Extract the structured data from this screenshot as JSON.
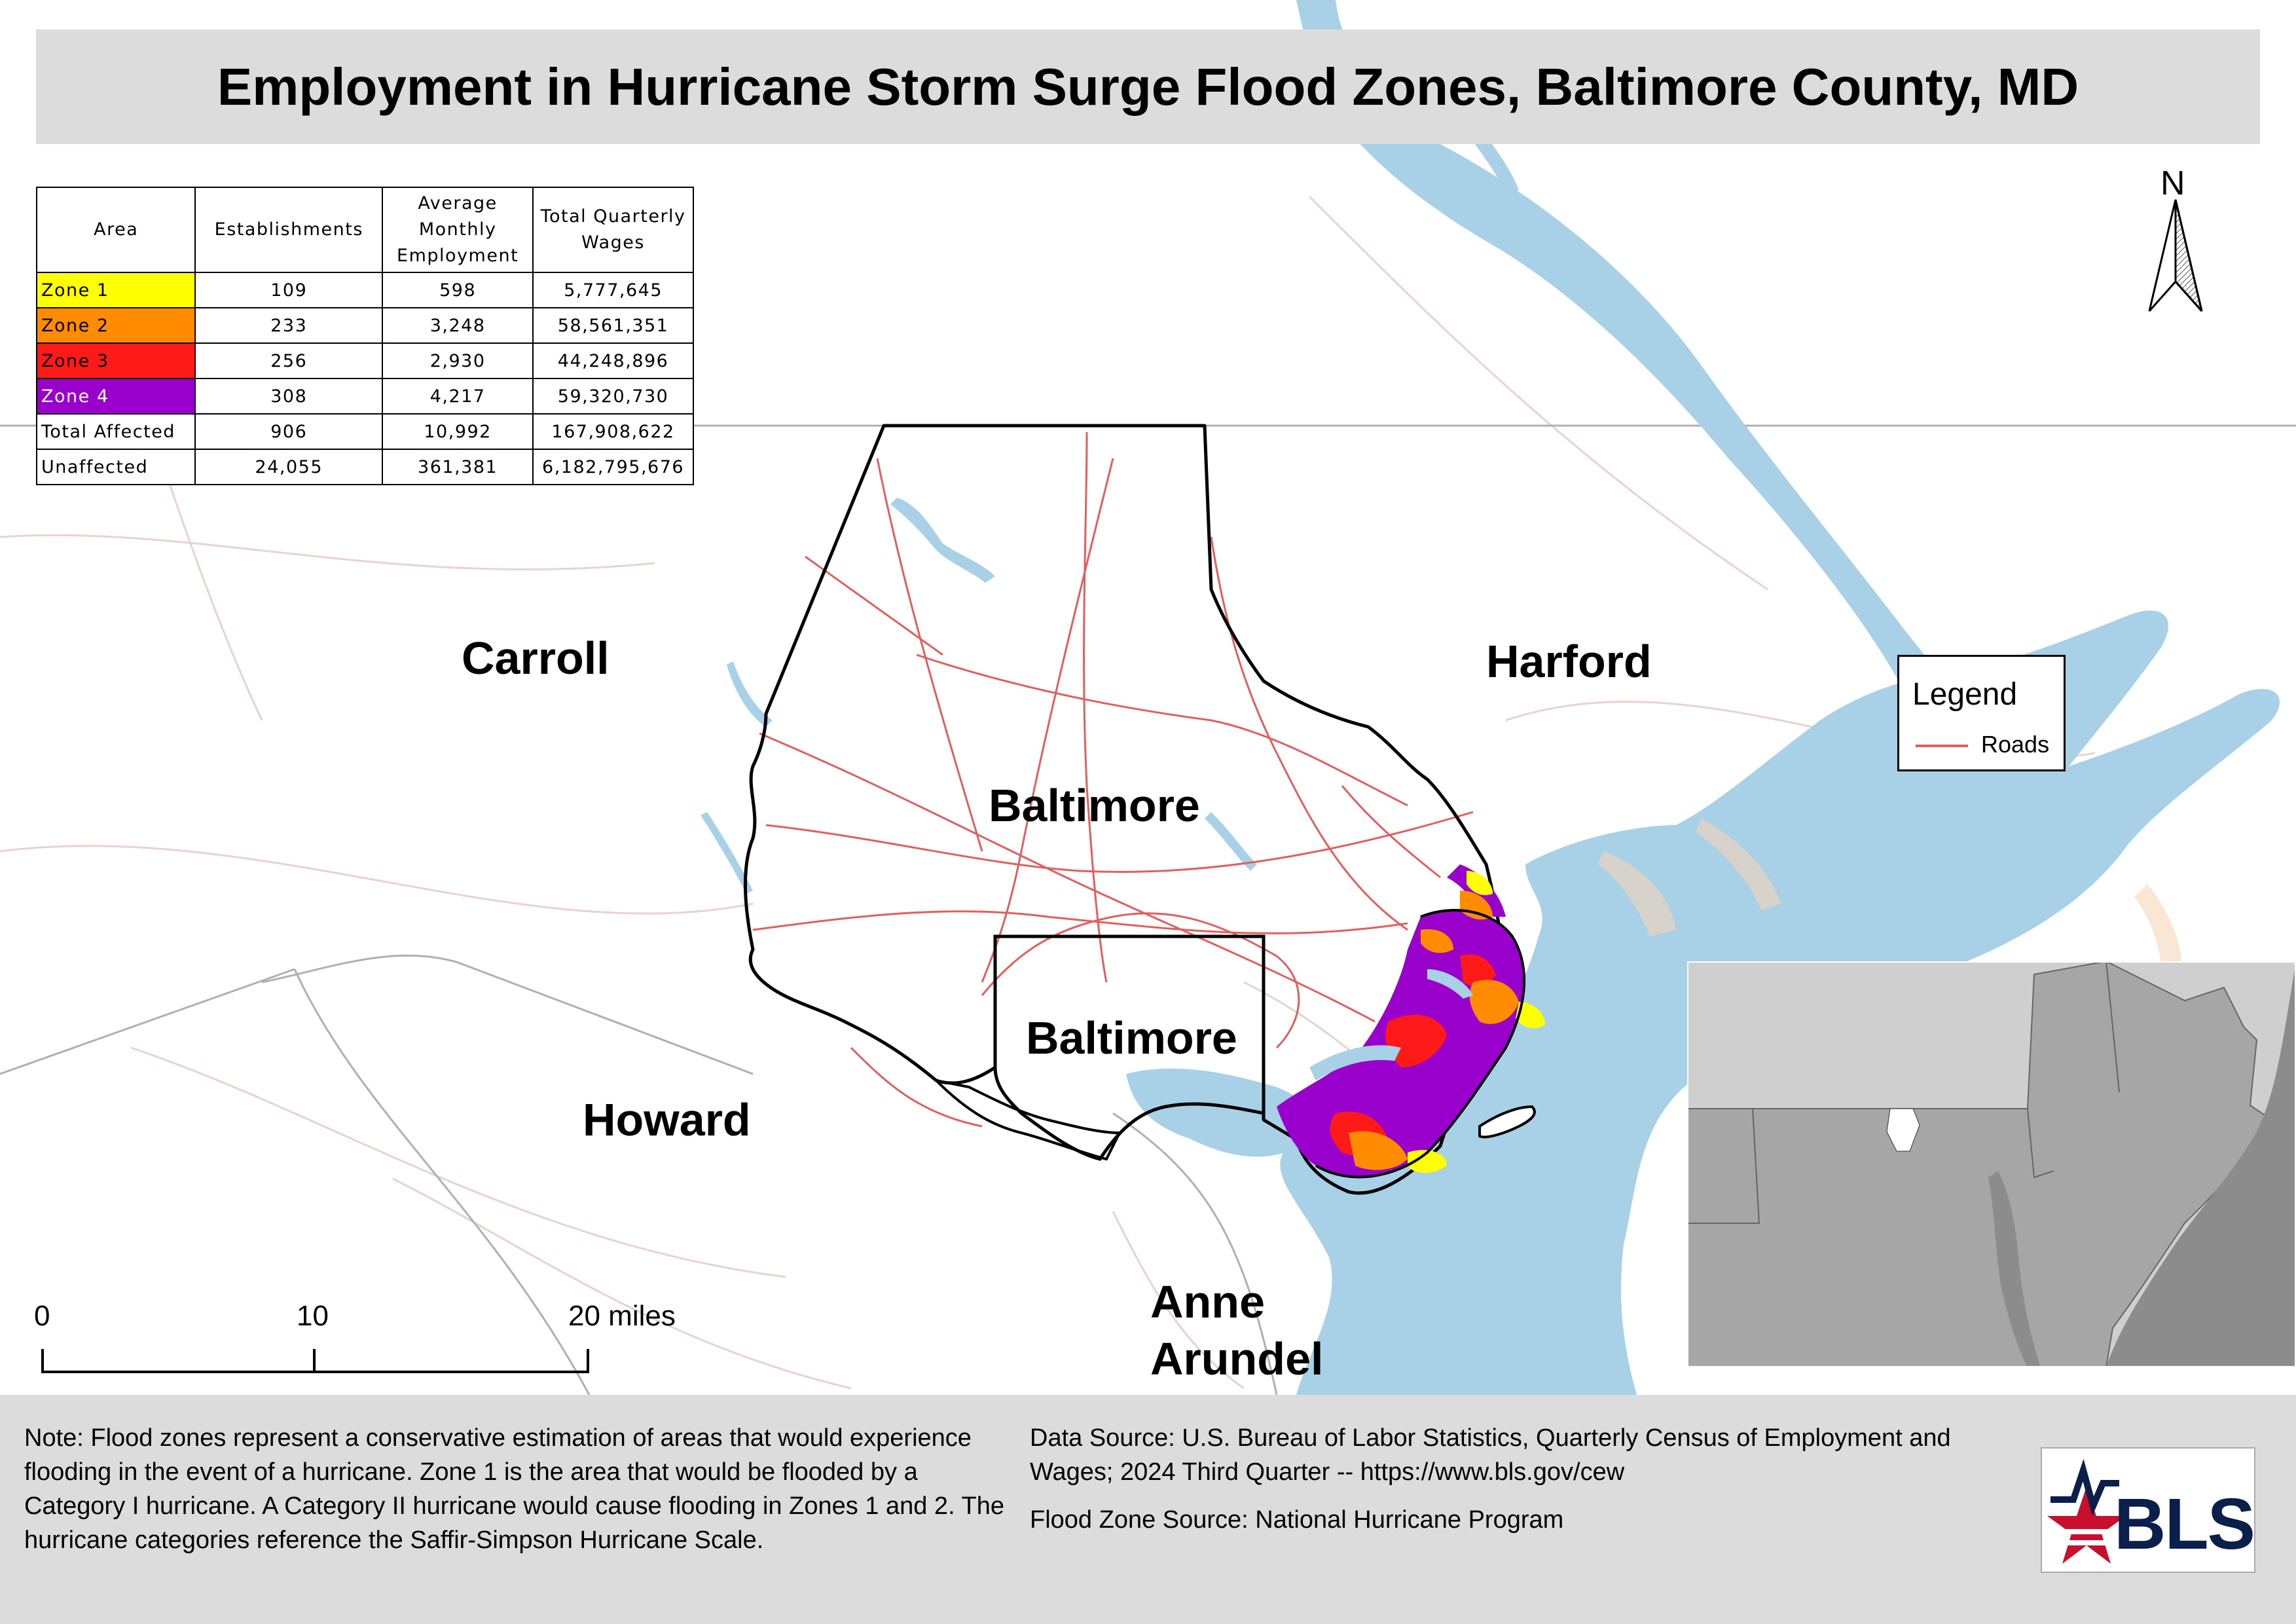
{
  "title": "Employment in Hurricane Storm Surge Flood Zones, Baltimore County, MD",
  "table": {
    "headers": [
      "Area",
      "Establishments",
      "Average Monthly Employment",
      "Total Quarterly Wages"
    ],
    "rows": [
      {
        "area": "Zone 1",
        "establishments": "109",
        "employment": "598",
        "wages": "5,777,645",
        "color": "#ffff00",
        "text_color": "#000000"
      },
      {
        "area": "Zone 2",
        "establishments": "233",
        "employment": "3,248",
        "wages": "58,561,351",
        "color": "#ff8c00",
        "text_color": "#000000"
      },
      {
        "area": "Zone 3",
        "establishments": "256",
        "employment": "2,930",
        "wages": "44,248,896",
        "color": "#ff1a1a",
        "text_color": "#000000"
      },
      {
        "area": "Zone 4",
        "establishments": "308",
        "employment": "4,217",
        "wages": "59,320,730",
        "color": "#9900cc",
        "text_color": "#ffffff"
      },
      {
        "area": "Total Affected",
        "establishments": "906",
        "employment": "10,992",
        "wages": "167,908,622",
        "color": "#ffffff",
        "text_color": "#000000"
      },
      {
        "area": "Unaffected",
        "establishments": "24,055",
        "employment": "361,381",
        "wages": "6,182,795,676",
        "color": "#ffffff",
        "text_color": "#000000"
      }
    ]
  },
  "labels": {
    "carroll": "Carroll",
    "harford": "Harford",
    "baltimore_county": "Baltimore",
    "baltimore_city": "Baltimore",
    "howard": "Howard",
    "anne_arundel_1": "Anne",
    "anne_arundel_2": "Arundel"
  },
  "north_arrow": "N",
  "legend": {
    "title": "Legend",
    "roads_label": "Roads",
    "roads_color": "#e06060"
  },
  "scale_bar": {
    "tick_0": "0",
    "tick_10": "10",
    "tick_20": "20 miles"
  },
  "colors": {
    "water": "#a8d0e6",
    "inset_land": "#a6a6a6",
    "inset_bg": "#c8c8c8",
    "footer_bg": "#dcdcdc"
  },
  "footer": {
    "note": "Note: Flood zones represent a conservative estimation of areas that would experience flooding in the event of a hurricane. Zone 1 is the area that would be flooded by a Category I hurricane. A Category II hurricane would cause flooding in Zones 1 and 2. The hurricane categories reference the Saffir-Simpson Hurricane Scale.",
    "data_source": "Data Source: U.S. Bureau of Labor Statistics, Quarterly Census of Employment and Wages; 2024 Third Quarter -- https://www.bls.gov/cew",
    "flood_source": "Flood Zone Source: National Hurricane Program"
  },
  "logo_text": "BLS"
}
